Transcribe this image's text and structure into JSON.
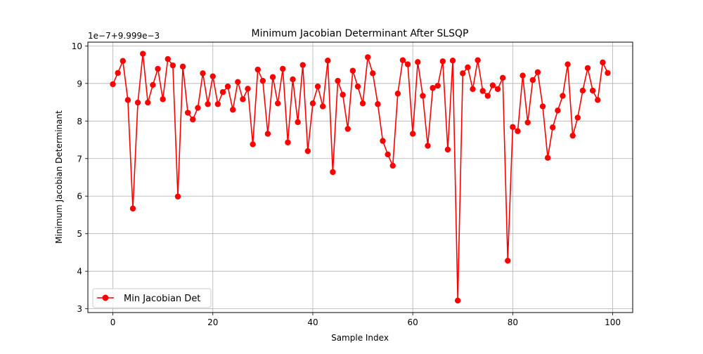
{
  "chart_data": {
    "type": "line",
    "title": "Minimum Jacobian Determinant After SLSQP",
    "xlabel": "Sample Index",
    "ylabel": "Minimum Jacobian Determinant",
    "offset_label": "1e−7+9.999e−3",
    "xlim": [
      -5,
      104
    ],
    "ylim": [
      2.9,
      10.1
    ],
    "x_ticks": [
      0,
      20,
      40,
      60,
      80,
      100
    ],
    "y_ticks": [
      3,
      4,
      5,
      6,
      7,
      8,
      9,
      10
    ],
    "grid": true,
    "legend_position": "lower-left",
    "series": [
      {
        "name": "Min Jacobian Det",
        "color": "#ff0000",
        "marker": "circle",
        "x": [
          0,
          1,
          2,
          3,
          4,
          5,
          6,
          7,
          8,
          9,
          10,
          11,
          12,
          13,
          14,
          15,
          16,
          17,
          18,
          19,
          20,
          21,
          22,
          23,
          24,
          25,
          26,
          27,
          28,
          29,
          30,
          31,
          32,
          33,
          34,
          35,
          36,
          37,
          38,
          39,
          40,
          41,
          42,
          43,
          44,
          45,
          46,
          47,
          48,
          49,
          50,
          51,
          52,
          53,
          54,
          55,
          56,
          57,
          58,
          59,
          60,
          61,
          62,
          63,
          64,
          65,
          66,
          67,
          68,
          69,
          70,
          71,
          72,
          73,
          74,
          75,
          76,
          77,
          78,
          79,
          80,
          81,
          82,
          83,
          84,
          85,
          86,
          87,
          88,
          89,
          90,
          91,
          92,
          93,
          94,
          95,
          96,
          97,
          98,
          99
        ],
        "values": [
          8.98,
          9.28,
          9.6,
          8.56,
          5.67,
          8.49,
          9.79,
          8.49,
          8.96,
          9.39,
          8.58,
          9.65,
          9.48,
          5.99,
          9.45,
          8.22,
          8.04,
          8.35,
          9.27,
          8.45,
          9.19,
          8.45,
          8.77,
          8.92,
          8.3,
          9.04,
          8.58,
          8.86,
          7.38,
          9.37,
          9.07,
          7.66,
          9.17,
          8.47,
          9.39,
          7.43,
          9.11,
          7.97,
          9.49,
          7.2,
          8.47,
          8.92,
          8.39,
          9.61,
          6.64,
          9.07,
          8.7,
          7.79,
          9.34,
          8.92,
          8.47,
          9.7,
          9.27,
          8.45,
          7.47,
          7.11,
          6.81,
          8.73,
          9.62,
          9.51,
          7.66,
          9.57,
          8.67,
          7.34,
          8.88,
          8.94,
          9.59,
          7.24,
          9.61,
          3.22,
          9.27,
          9.43,
          8.85,
          9.62,
          8.8,
          8.67,
          8.95,
          8.85,
          9.15,
          4.28,
          7.84,
          7.73,
          9.21,
          7.96,
          9.09,
          9.3,
          8.39,
          7.02,
          7.83,
          8.28,
          8.67,
          9.51,
          7.61,
          8.09,
          8.81,
          9.41,
          8.81,
          8.56,
          9.56,
          9.28
        ]
      }
    ]
  }
}
